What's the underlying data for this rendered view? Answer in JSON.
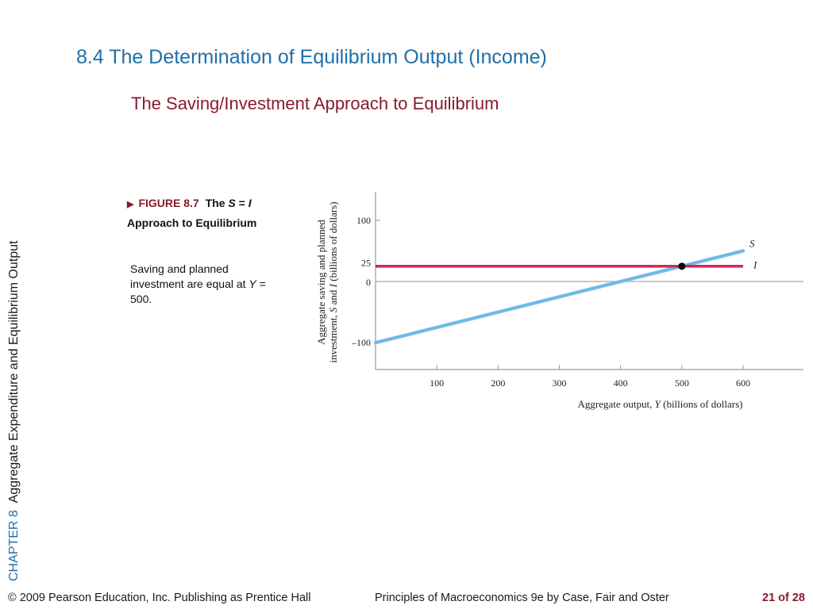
{
  "slide": {
    "title": "8.4 The Determination of Equilibrium Output (Income)",
    "subtitle": "The Saving/Investment Approach to Equilibrium",
    "side_chapter": "CHAPTER 8",
    "side_title": "Aggregate Expenditure and Equilibrium Output"
  },
  "figure": {
    "marker": "▶",
    "number": "FIGURE 8.7",
    "title_pre": "The",
    "title_s": "S",
    "title_eq": "=",
    "title_i": "I",
    "title_post": "Approach to Equilibrium",
    "desc_pre": "Saving and planned investment are equal at",
    "desc_var": "Y",
    "desc_post": "= 500."
  },
  "footer": {
    "copyright": "© 2009 Pearson Education, Inc. Publishing as Prentice Hall",
    "book": "Principles of Macroeconomics 9e by Case, Fair and Oster",
    "page": "21 of 28"
  },
  "colors": {
    "saving": "#7cc0e8",
    "investment": "#d6245a",
    "accent_title": "#1f6fa8",
    "accent_red": "#8a1a2e"
  },
  "chart_data": {
    "type": "line",
    "xlabel_pre": "Aggregate output,",
    "xlabel_var": "Y",
    "xlabel_post": "(billions of dollars)",
    "ylabel_line1": "Aggregate saving and planned",
    "ylabel_line2_pre": "investment,",
    "ylabel_line2_s": "S",
    "ylabel_line2_mid": "and",
    "ylabel_line2_i": "I",
    "ylabel_line2_post": "(billions of dollars)",
    "xlim": [
      0,
      600
    ],
    "ylim": [
      -100,
      100
    ],
    "x_ticks": [
      100,
      200,
      300,
      400,
      500,
      600
    ],
    "y_ticks": [
      {
        "value": 100,
        "label": "100"
      },
      {
        "value": 25,
        "label": "25"
      },
      {
        "value": 0,
        "label": "0"
      },
      {
        "value": -100,
        "label": "–100"
      }
    ],
    "series": [
      {
        "name": "S",
        "x": [
          0,
          600
        ],
        "y": [
          -100,
          50
        ]
      },
      {
        "name": "I",
        "x": [
          0,
          600
        ],
        "y": [
          25,
          25
        ]
      }
    ],
    "equilibrium": {
      "x": 500,
      "y": 25
    }
  }
}
